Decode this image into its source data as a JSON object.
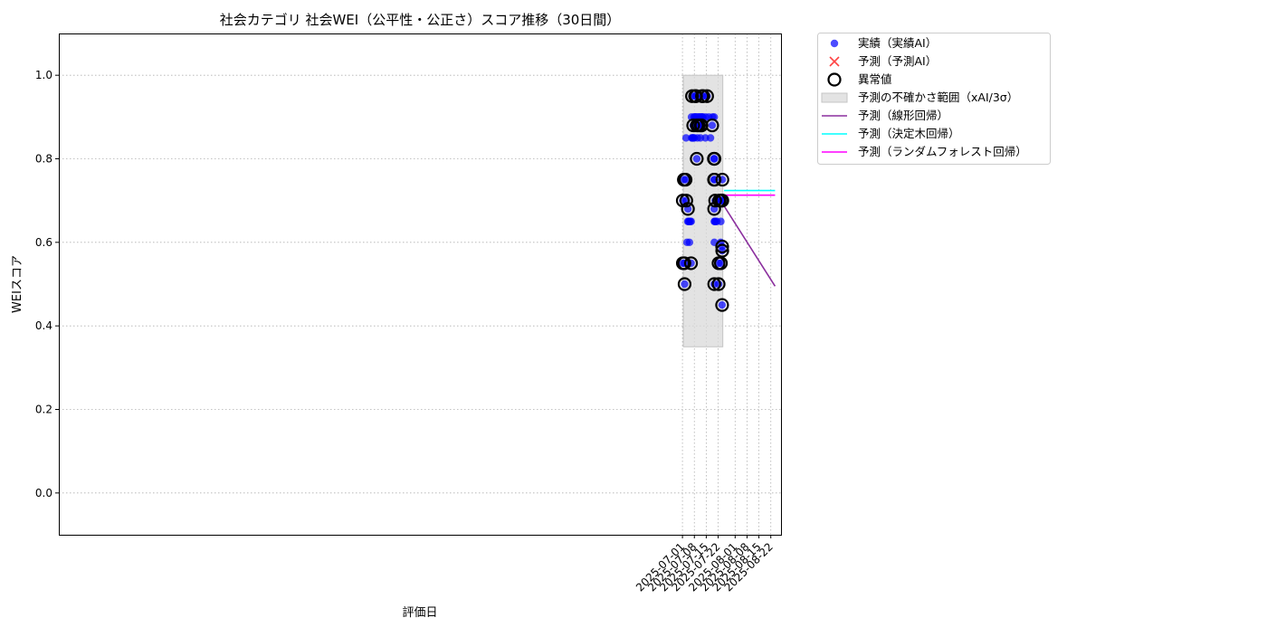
{
  "chart_data": {
    "type": "scatter",
    "title": "社会カテゴリ 社会WEI（公平性・公正さ）スコア推移（30日間）",
    "xlabel": "評価日",
    "ylabel": "WEIスコア",
    "xlim": [
      "2024-06-29T00:00",
      "2025-08-28T00:00"
    ],
    "ylim": [
      -0.1,
      1.1
    ],
    "yticks": [
      0.0,
      0.2,
      0.4,
      0.6,
      0.8,
      1.0
    ],
    "ytick_labels": [
      "0.0",
      "0.2",
      "0.4",
      "0.6",
      "0.8",
      "1.0"
    ],
    "xticks": [
      "2025-07-01",
      "2025-07-08",
      "2025-07-15",
      "2025-07-22",
      "2025-08-01",
      "2025-08-08",
      "2025-08-15",
      "2025-08-22"
    ],
    "xtick_labels": [
      "2025-07-01",
      "2025-07-08",
      "2025-07-15",
      "2025-07-22",
      "2025-08-01",
      "2025-08-08",
      "2025-08-15",
      "2025-08-22"
    ],
    "grid": true,
    "legend_position": "outside-upper-right",
    "series": [
      {
        "name": "実績（実績AI）",
        "kind": "scatter",
        "color": "#0000ff",
        "points": [
          [
            "2025-07-01T05:00",
            0.7
          ],
          [
            "2025-07-01T06:00",
            0.55
          ],
          [
            "2025-07-01T20:00",
            0.75
          ],
          [
            "2025-07-02T03:00",
            0.55
          ],
          [
            "2025-07-02T06:00",
            0.5
          ],
          [
            "2025-07-02T20:00",
            0.75
          ],
          [
            "2025-07-03T03:00",
            0.85
          ],
          [
            "2025-07-03T06:00",
            0.7
          ],
          [
            "2025-07-03T16:00",
            0.6
          ],
          [
            "2025-07-04T03:00",
            0.65
          ],
          [
            "2025-07-04T05:00",
            0.68
          ],
          [
            "2025-07-04T15:00",
            0.65
          ],
          [
            "2025-07-05T00:00",
            0.65
          ],
          [
            "2025-07-05T03:00",
            0.6
          ],
          [
            "2025-07-05T15:00",
            0.65
          ],
          [
            "2025-07-06T01:00",
            0.55
          ],
          [
            "2025-07-06T03:00",
            0.65
          ],
          [
            "2025-07-06T08:00",
            0.9
          ],
          [
            "2025-07-06T10:00",
            0.85
          ],
          [
            "2025-07-06T15:00",
            0.95
          ],
          [
            "2025-07-06T20:00",
            0.85
          ],
          [
            "2025-07-07T03:00",
            0.85
          ],
          [
            "2025-07-07T08:00",
            0.88
          ],
          [
            "2025-07-07T12:00",
            0.85
          ],
          [
            "2025-07-07T18:00",
            0.9
          ],
          [
            "2025-07-08T00:00",
            0.85
          ],
          [
            "2025-07-08T06:00",
            0.9
          ],
          [
            "2025-07-08T12:00",
            0.95
          ],
          [
            "2025-07-08T18:00",
            0.9
          ],
          [
            "2025-07-09T00:00",
            0.95
          ],
          [
            "2025-07-09T06:00",
            0.9
          ],
          [
            "2025-07-09T10:00",
            0.8
          ],
          [
            "2025-07-09T12:00",
            0.88
          ],
          [
            "2025-07-09T20:00",
            0.85
          ],
          [
            "2025-07-10T03:00",
            0.9
          ],
          [
            "2025-07-10T12:00",
            0.88
          ],
          [
            "2025-07-10T20:00",
            0.9
          ],
          [
            "2025-07-11T03:00",
            0.88
          ],
          [
            "2025-07-11T08:00",
            0.9
          ],
          [
            "2025-07-11T14:00",
            0.85
          ],
          [
            "2025-07-11T20:00",
            0.88
          ],
          [
            "2025-07-12T02:00",
            0.9
          ],
          [
            "2025-07-12T05:00",
            0.88
          ],
          [
            "2025-07-12T12:00",
            0.95
          ],
          [
            "2025-07-12T16:00",
            0.9
          ],
          [
            "2025-07-13T00:00",
            0.9
          ],
          [
            "2025-07-13T05:00",
            0.95
          ],
          [
            "2025-07-14T12:00",
            0.85
          ],
          [
            "2025-07-14T15:00",
            0.9
          ],
          [
            "2025-07-15T12:00",
            0.95
          ],
          [
            "2025-07-16T12:00",
            0.9
          ],
          [
            "2025-07-17T12:00",
            0.85
          ],
          [
            "2025-07-18T12:00",
            0.88
          ],
          [
            "2025-07-18T16:00",
            0.9
          ],
          [
            "2025-07-19T12:00",
            0.8
          ],
          [
            "2025-07-19T14:00",
            0.75
          ],
          [
            "2025-07-19T16:00",
            0.68
          ],
          [
            "2025-07-19T17:00",
            0.5
          ],
          [
            "2025-07-19T18:00",
            0.6
          ],
          [
            "2025-07-19T19:00",
            0.65
          ],
          [
            "2025-07-19T20:00",
            0.8
          ],
          [
            "2025-07-19T22:00",
            0.75
          ],
          [
            "2025-07-20T00:00",
            0.65
          ],
          [
            "2025-07-19T16:00",
            0.9
          ],
          [
            "2025-07-20T06:00",
            0.7
          ],
          [
            "2025-07-20T12:00",
            0.65
          ],
          [
            "2025-07-21T06:00",
            0.65
          ],
          [
            "2025-07-22T06:00",
            0.55
          ],
          [
            "2025-07-22T07:00",
            0.5
          ],
          [
            "2025-07-22T15:00",
            0.7
          ],
          [
            "2025-07-23T12:00",
            0.6
          ],
          [
            "2025-07-23T14:00",
            0.65
          ],
          [
            "2025-07-23T15:00",
            0.55
          ],
          [
            "2025-07-23T20:00",
            0.7
          ],
          [
            "2025-07-24T00:00",
            0.7
          ],
          [
            "2025-07-24T08:00",
            0.45
          ],
          [
            "2025-07-24T09:00",
            0.59
          ],
          [
            "2025-07-24T10:00",
            0.58
          ],
          [
            "2025-07-24T11:00",
            0.7
          ],
          [
            "2025-07-24T12:00",
            0.75
          ]
        ]
      },
      {
        "name": "予測（予測AI）",
        "kind": "scatter-x",
        "color": "#ff4444",
        "points": []
      },
      {
        "name": "異常値",
        "kind": "outlier-rings",
        "color": "#000000",
        "points": [
          [
            "2025-07-01T05:00",
            0.7
          ],
          [
            "2025-07-01T06:00",
            0.55
          ],
          [
            "2025-07-01T20:00",
            0.75
          ],
          [
            "2025-07-02T03:00",
            0.55
          ],
          [
            "2025-07-02T06:00",
            0.5
          ],
          [
            "2025-07-02T20:00",
            0.75
          ],
          [
            "2025-07-03T06:00",
            0.7
          ],
          [
            "2025-07-04T05:00",
            0.68
          ],
          [
            "2025-07-06T01:00",
            0.55
          ],
          [
            "2025-07-06T15:00",
            0.95
          ],
          [
            "2025-07-07T08:00",
            0.88
          ],
          [
            "2025-07-08T12:00",
            0.95
          ],
          [
            "2025-07-09T00:00",
            0.95
          ],
          [
            "2025-07-09T10:00",
            0.8
          ],
          [
            "2025-07-09T12:00",
            0.88
          ],
          [
            "2025-07-10T12:00",
            0.88
          ],
          [
            "2025-07-11T20:00",
            0.88
          ],
          [
            "2025-07-12T05:00",
            0.88
          ],
          [
            "2025-07-12T12:00",
            0.95
          ],
          [
            "2025-07-13T05:00",
            0.95
          ],
          [
            "2025-07-15T12:00",
            0.95
          ],
          [
            "2025-07-18T12:00",
            0.88
          ],
          [
            "2025-07-19T12:00",
            0.8
          ],
          [
            "2025-07-19T14:00",
            0.75
          ],
          [
            "2025-07-19T16:00",
            0.68
          ],
          [
            "2025-07-19T17:00",
            0.5
          ],
          [
            "2025-07-19T20:00",
            0.8
          ],
          [
            "2025-07-19T22:00",
            0.75
          ],
          [
            "2025-07-20T06:00",
            0.7
          ],
          [
            "2025-07-22T06:00",
            0.55
          ],
          [
            "2025-07-22T07:00",
            0.5
          ],
          [
            "2025-07-22T15:00",
            0.7
          ],
          [
            "2025-07-23T15:00",
            0.55
          ],
          [
            "2025-07-23T20:00",
            0.7
          ],
          [
            "2025-07-24T00:00",
            0.7
          ],
          [
            "2025-07-24T08:00",
            0.45
          ],
          [
            "2025-07-24T09:00",
            0.59
          ],
          [
            "2025-07-24T10:00",
            0.58
          ],
          [
            "2025-07-24T11:00",
            0.7
          ],
          [
            "2025-07-24T12:00",
            0.75
          ]
        ]
      },
      {
        "name": "予測の不確かさ範囲（xAI/3σ）",
        "kind": "band",
        "color": "#d9d9d9",
        "x_range": [
          "2025-07-01T12:00",
          "2025-07-24T18:00"
        ],
        "y_range": [
          0.35,
          1.0
        ]
      },
      {
        "name": "予測（線形回帰）",
        "kind": "line",
        "color": "#8b2f9e",
        "points": [
          [
            "2025-07-25T12:00",
            0.687
          ],
          [
            "2025-08-24T12:00",
            0.495
          ]
        ]
      },
      {
        "name": "予測（決定木回帰）",
        "kind": "line",
        "color": "#00ffff",
        "points": [
          [
            "2025-07-25T12:00",
            0.724
          ],
          [
            "2025-08-24T12:00",
            0.724
          ]
        ]
      },
      {
        "name": "予測（ランダムフォレスト回帰）",
        "kind": "line",
        "color": "#ff00ff",
        "points": [
          [
            "2025-07-25T12:00",
            0.713
          ],
          [
            "2025-08-24T12:00",
            0.713
          ]
        ]
      }
    ]
  }
}
